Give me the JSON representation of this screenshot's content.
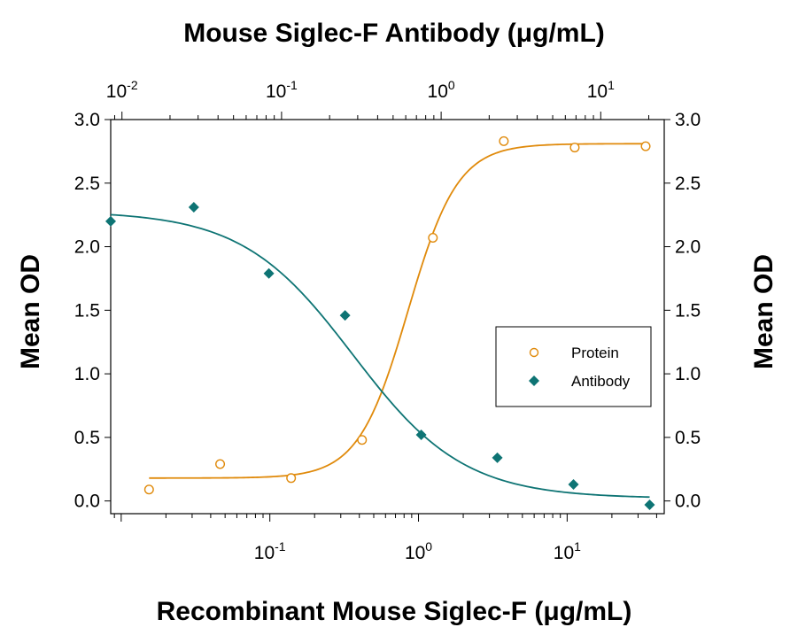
{
  "chart_data": {
    "type": "scatter",
    "title": "Mouse Siglec-F Antibody (μg/mL)",
    "xlabel": "Recombinant Mouse Siglec-F (μg/mL)",
    "ylabel": "Mean OD",
    "ylabel_right": "Mean OD",
    "x_scale": "log",
    "xlim": [
      0.0085,
      45
    ],
    "x_ticks": [
      {
        "value": 0.1,
        "base": "10",
        "exp": "-1"
      },
      {
        "value": 1,
        "base": "10",
        "exp": "0"
      },
      {
        "value": 10,
        "base": "10",
        "exp": "1"
      }
    ],
    "x2_scale": "log",
    "x2lim": [
      0.0085,
      25
    ],
    "x2_ticks": [
      {
        "value": 0.01,
        "base": "10",
        "exp": "-2"
      },
      {
        "value": 0.1,
        "base": "10",
        "exp": "-1"
      },
      {
        "value": 1,
        "base": "10",
        "exp": "0"
      },
      {
        "value": 10,
        "base": "10",
        "exp": "1"
      }
    ],
    "ylim": [
      -0.1,
      3.0
    ],
    "y_ticks": [
      "0.0",
      "0.5",
      "1.0",
      "1.5",
      "2.0",
      "2.5",
      "3.0"
    ],
    "grid": false,
    "legend_position": "right",
    "series": [
      {
        "name": "Protein",
        "axis": "bottom",
        "marker": "open-circle",
        "color": "#E08A0B",
        "x": [
          0.0154,
          0.0463,
          0.139,
          0.417,
          1.25,
          3.75,
          11.25,
          33.75
        ],
        "y": [
          0.09,
          0.29,
          0.18,
          0.48,
          2.07,
          2.83,
          2.78,
          2.79
        ],
        "fit": {
          "bottom": 0.18,
          "top": 2.81,
          "ec50": 0.85,
          "hill": 2.6
        }
      },
      {
        "name": "Antibody",
        "axis": "top",
        "marker": "filled-diamond",
        "color": "#0E7474",
        "x": [
          0.0085,
          0.0282,
          0.0833,
          0.25,
          0.75,
          2.25,
          6.75,
          20.25
        ],
        "y": [
          2.2,
          2.31,
          1.79,
          1.46,
          0.52,
          0.34,
          0.13,
          -0.03
        ],
        "fit": {
          "bottom": 0.02,
          "top": 2.28,
          "ec50": 0.28,
          "hill": -1.25
        }
      }
    ]
  }
}
